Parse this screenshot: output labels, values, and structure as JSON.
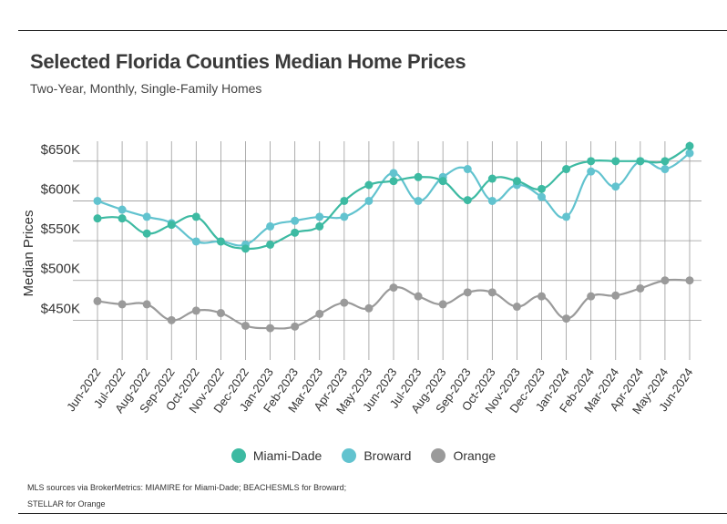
{
  "title": "Selected Florida Counties Median Home Prices",
  "subtitle": "Two-Year, Monthly, Single-Family Homes",
  "source_line1": "MLS sources via BrokerMetrics: MIAMIRE for Miami-Dade; BEACHESMLS for Broward;",
  "source_line2": "STELLAR for Orange",
  "chart_data": {
    "type": "line",
    "title": "Selected Florida Counties Median Home Prices",
    "subtitle": "Two-Year, Monthly, Single-Family Homes",
    "xlabel": "",
    "ylabel": "Median Prices",
    "ylim": [
      400000,
      675000
    ],
    "yticks": [
      450000,
      500000,
      550000,
      600000,
      650000
    ],
    "ytick_labels": [
      "$450K",
      "$500K",
      "$550K",
      "$600K",
      "$650K"
    ],
    "grid": true,
    "legend_position": "bottom",
    "categories": [
      "Jun-2022",
      "Jul-2022",
      "Aug-2022",
      "Sep-2022",
      "Oct-2022",
      "Nov-2022",
      "Dec-2022",
      "Jan-2023",
      "Feb-2023",
      "Mar-2023",
      "Apr-2023",
      "May-2023",
      "Jun-2023",
      "Jul-2023",
      "Aug-2023",
      "Sep-2023",
      "Oct-2023",
      "Nov-2023",
      "Dec-2023",
      "Jan-2024",
      "Feb-2024",
      "Mar-2024",
      "Apr-2024",
      "May-2024",
      "Jun-2024"
    ],
    "series": [
      {
        "name": "Miami-Dade",
        "color": "#3dbaa2",
        "values": [
          578000,
          578000,
          559000,
          570000,
          580000,
          549000,
          540000,
          545000,
          560000,
          568000,
          600000,
          620000,
          625000,
          630000,
          625000,
          601000,
          628000,
          625000,
          615000,
          640000,
          650000,
          650000,
          650000,
          650000,
          669000
        ]
      },
      {
        "name": "Broward",
        "color": "#62c3cf",
        "values": [
          600000,
          589000,
          580000,
          572000,
          549000,
          549000,
          545000,
          568000,
          575000,
          580000,
          580000,
          600000,
          635000,
          600000,
          630000,
          640000,
          600000,
          620000,
          605000,
          580000,
          637000,
          618000,
          650000,
          640000,
          660000
        ]
      },
      {
        "name": "Orange",
        "color": "#9a9a9a",
        "values": [
          474000,
          470000,
          470000,
          450000,
          462000,
          459000,
          443000,
          440000,
          442000,
          458000,
          472000,
          465000,
          491000,
          480000,
          470000,
          485000,
          485000,
          467000,
          480000,
          452000,
          480000,
          481000,
          490000,
          500000,
          500000
        ]
      }
    ]
  }
}
